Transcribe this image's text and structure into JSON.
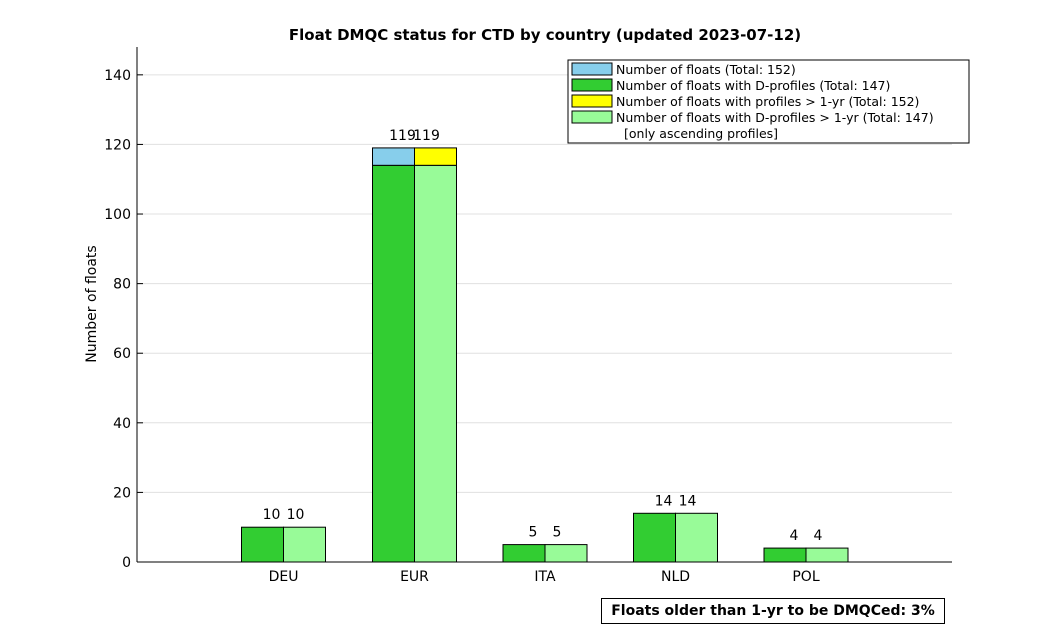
{
  "chart_data": {
    "type": "bar",
    "title": "Float DMQC status for CTD by country (updated 2023-07-12)",
    "xlabel": "",
    "ylabel": "Number of floats",
    "ylim": [
      0,
      148
    ],
    "yticks": [
      0,
      20,
      40,
      60,
      80,
      100,
      120,
      140
    ],
    "grid": true,
    "legend_position": "top-right",
    "categories": [
      "DEU",
      "EUR",
      "ITA",
      "NLD",
      "POL"
    ],
    "series": [
      {
        "name": "Number of floats (Total: 152)",
        "values": [
          10,
          119,
          5,
          14,
          4
        ],
        "color": "#87ceeb"
      },
      {
        "name": "Number of floats with D-profiles (Total: 147)",
        "values": [
          10,
          114,
          5,
          14,
          4
        ],
        "color": "#32cd32"
      },
      {
        "name": "Number of floats with profiles > 1-yr (Total: 152)",
        "values": [
          10,
          119,
          5,
          14,
          4
        ],
        "color": "#ffff00"
      },
      {
        "name": "Number of floats with D-profiles > 1-yr (Total: 147)",
        "values": [
          10,
          114,
          5,
          14,
          4
        ],
        "color": "#98fb98"
      }
    ],
    "legend_note": "[only ascending profiles]",
    "bar_labels_left": [
      "10",
      "119",
      "5",
      "14",
      "4"
    ],
    "bar_labels_right": [
      "10",
      "119",
      "5",
      "14",
      "4"
    ]
  },
  "footer_text": "Floats older than 1-yr to be DMQCed: 3%"
}
